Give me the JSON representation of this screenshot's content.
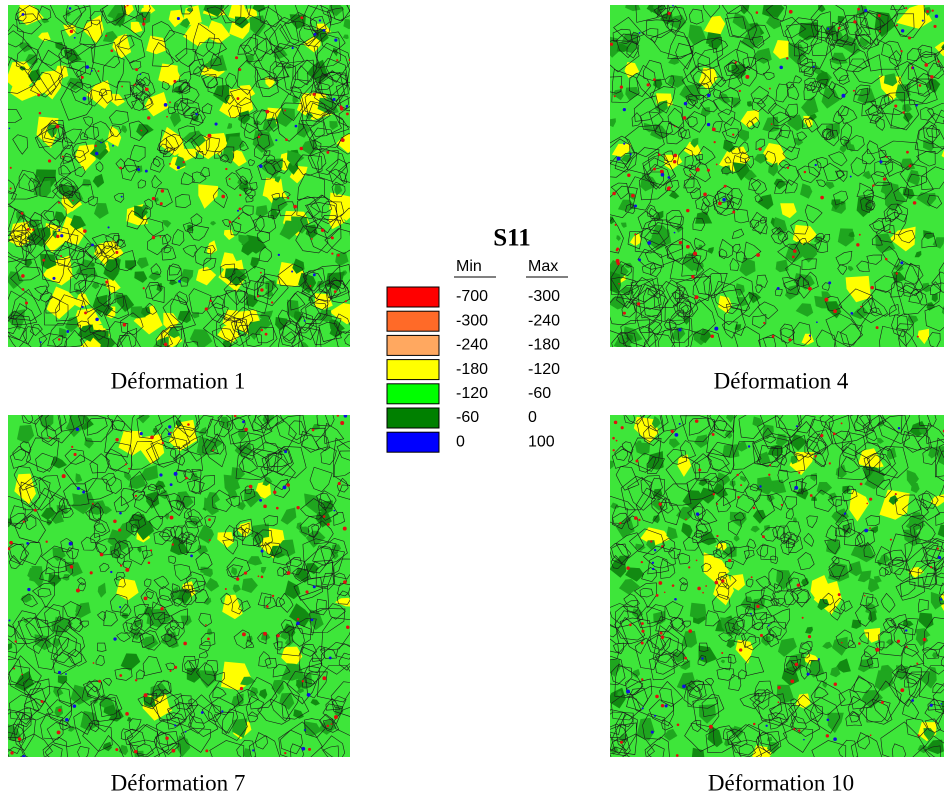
{
  "panels": [
    {
      "caption": "Déformation 1"
    },
    {
      "caption": "Déformation 4"
    },
    {
      "caption": "Déformation 7"
    },
    {
      "caption": "Déformation 10"
    }
  ],
  "legend": {
    "title": "S11",
    "headers": [
      "Min",
      "Max"
    ],
    "rows": [
      {
        "min": -700,
        "max": -300,
        "color": "#ff0000"
      },
      {
        "min": -300,
        "max": -240,
        "color": "#ff6a28"
      },
      {
        "min": -240,
        "max": -180,
        "color": "#ffa860"
      },
      {
        "min": -180,
        "max": -120,
        "color": "#ffff00"
      },
      {
        "min": -120,
        "max": -60,
        "color": "#00ff00"
      },
      {
        "min": -60,
        "max": 0,
        "color": "#008000"
      },
      {
        "min": 0,
        "max": 100,
        "color": "#0000ff"
      }
    ]
  }
}
